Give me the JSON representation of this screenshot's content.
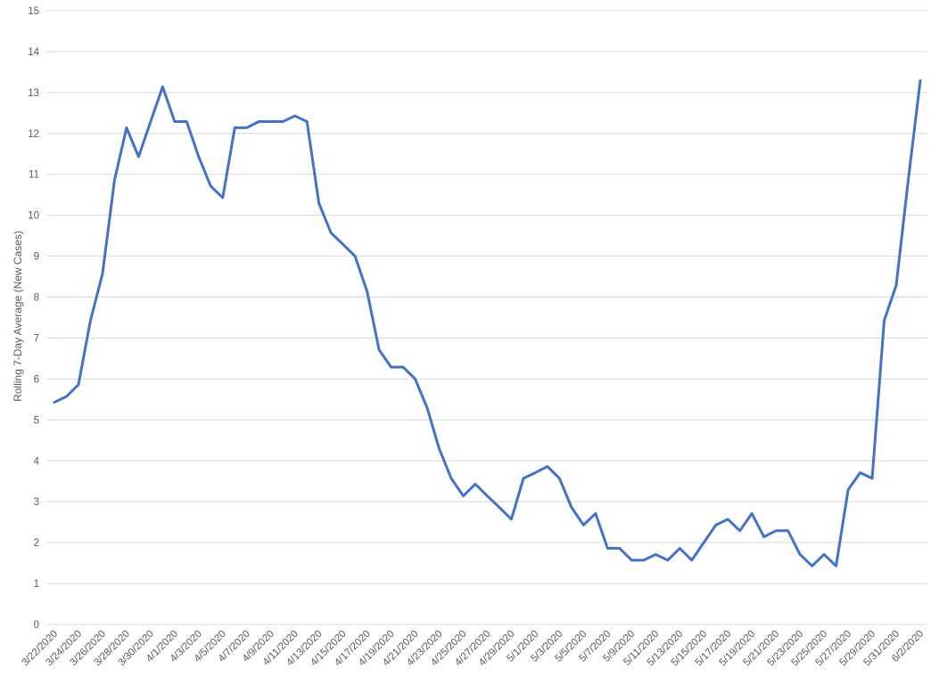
{
  "chart_data": {
    "type": "line",
    "title": "",
    "xlabel": "",
    "ylabel": "Rolling 7-Day Average (New Cases)",
    "ylim": [
      0,
      15
    ],
    "yticks": [
      "0",
      "1",
      "2",
      "3",
      "4",
      "5",
      "6",
      "7",
      "8",
      "9",
      "10",
      "11",
      "12",
      "13",
      "14",
      "15"
    ],
    "grid": "horizontal",
    "legend": "none",
    "line_color": "#4472C4",
    "grid_color": "#d9d9d9",
    "x_tick_labels": [
      "3/22/2020",
      "3/24/2020",
      "3/26/2020",
      "3/28/2020",
      "3/30/2020",
      "4/1/2020",
      "4/3/2020",
      "4/5/2020",
      "4/7/2020",
      "4/9/2020",
      "4/11/2020",
      "4/13/2020",
      "4/15/2020",
      "4/17/2020",
      "4/19/2020",
      "4/21/2020",
      "4/23/2020",
      "4/25/2020",
      "4/27/2020",
      "4/29/2020",
      "5/1/2020",
      "5/3/2020",
      "5/5/2020",
      "5/7/2020",
      "5/9/2020",
      "5/11/2020",
      "5/13/2020",
      "5/15/2020",
      "5/17/2020",
      "5/19/2020",
      "5/21/2020",
      "5/23/2020",
      "5/25/2020",
      "5/27/2020",
      "5/29/2020",
      "5/31/2020",
      "6/2/2020"
    ],
    "series": [
      {
        "values": [
          5.43,
          5.57,
          5.86,
          7.43,
          8.57,
          10.86,
          12.14,
          11.43,
          12.29,
          13.14,
          12.29,
          12.29,
          11.43,
          10.71,
          10.43,
          12.14,
          12.14,
          12.29,
          12.29,
          12.29,
          12.43,
          12.29,
          10.29,
          9.57,
          9.29,
          9.0,
          8.14,
          6.71,
          6.29,
          6.29,
          6.0,
          5.29,
          4.29,
          3.57,
          3.14,
          3.43,
          3.14,
          2.86,
          2.57,
          3.57,
          3.71,
          3.86,
          3.57,
          2.86,
          2.43,
          2.71,
          1.86,
          1.86,
          1.57,
          1.57,
          1.71,
          1.57,
          1.86,
          1.57,
          2.0,
          2.43,
          2.57,
          2.29,
          2.71,
          2.14,
          2.29,
          2.29,
          1.71,
          1.43,
          1.71,
          1.43,
          3.29,
          3.71,
          3.57,
          7.43,
          8.29,
          10.86,
          13.29
        ]
      }
    ]
  }
}
